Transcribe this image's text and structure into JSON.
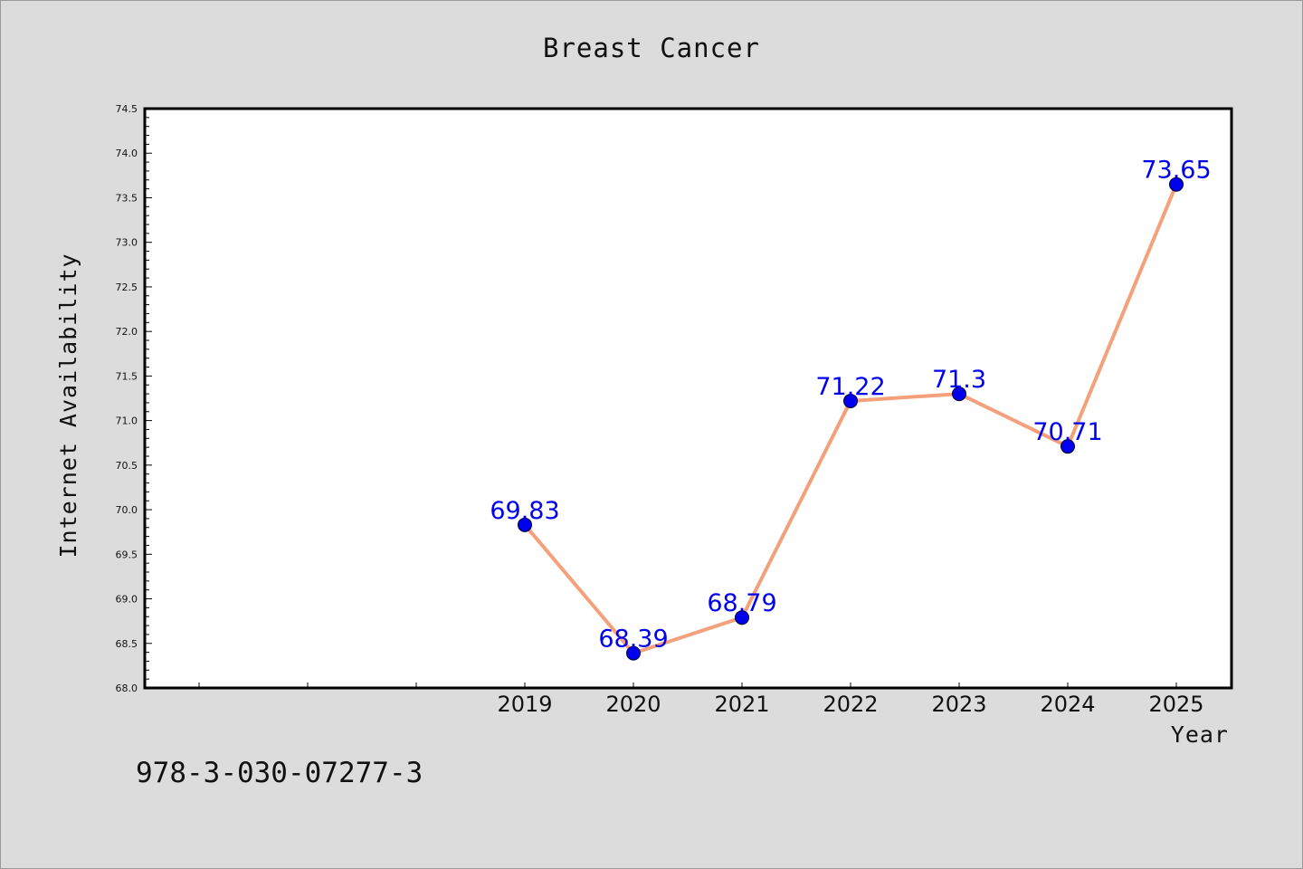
{
  "chart_data": {
    "type": "line",
    "title": "Breast Cancer",
    "xlabel": "Year",
    "ylabel": "Internet Availability",
    "x": [
      "2019",
      "2020",
      "2021",
      "2022",
      "2023",
      "2024",
      "2025"
    ],
    "series": [
      {
        "values": [
          69.83,
          68.39,
          68.79,
          71.22,
          71.3,
          70.71,
          73.65
        ]
      }
    ],
    "data_labels": [
      "69.83",
      "68.39",
      "68.79",
      "71.22",
      "71.3",
      "70.71",
      "73.65"
    ],
    "ylim": [
      68.0,
      74.5
    ],
    "xlim_categories": 10,
    "x_first_category_index": 3,
    "yticks": [
      "68.0",
      "68.5",
      "69.0",
      "69.5",
      "70.0",
      "70.5",
      "71.0",
      "71.5",
      "72.0",
      "72.5",
      "73.0",
      "73.5",
      "74.0",
      "74.5"
    ],
    "grid": false,
    "line_color": "#f4a07a",
    "marker_color": "#0000ee",
    "label_color": "#0000ee"
  },
  "footer": {
    "text": "978-3-030-07277-3"
  }
}
